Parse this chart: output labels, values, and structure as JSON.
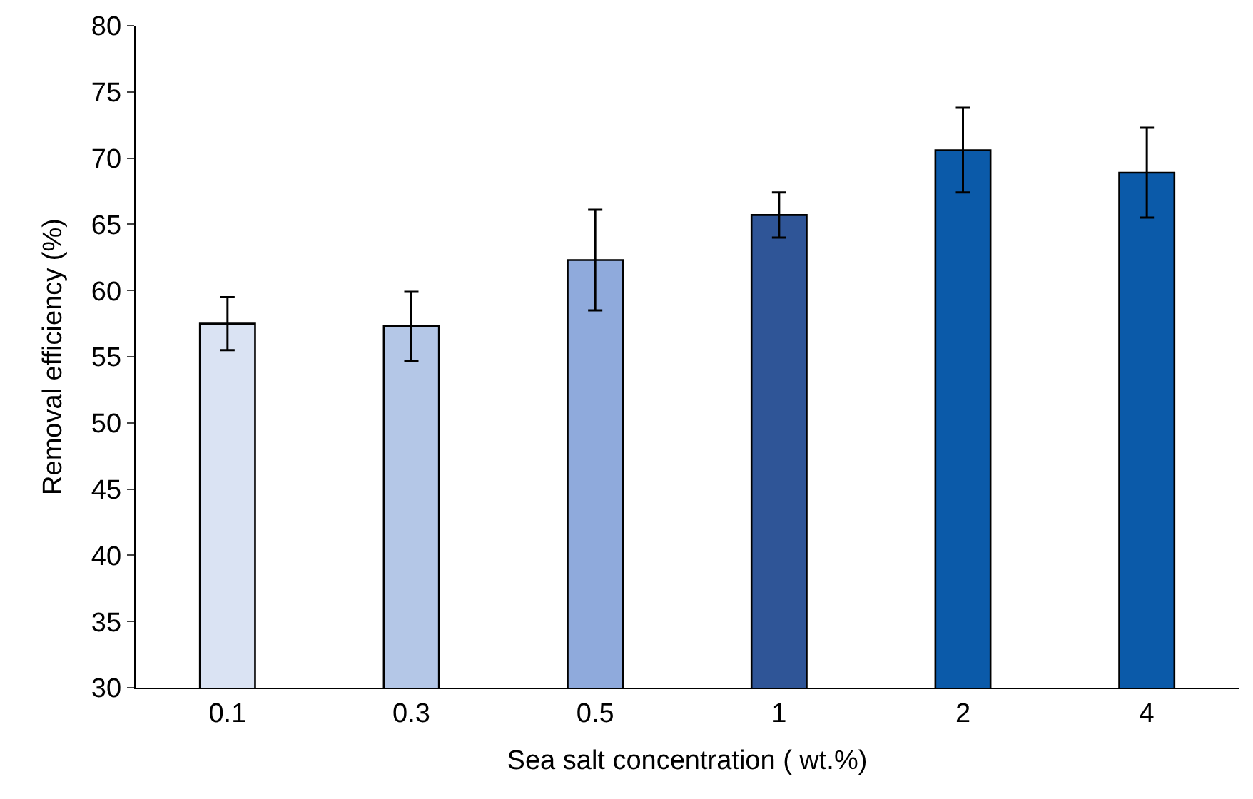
{
  "chart_data": {
    "type": "bar",
    "xlabel": "Sea salt concentration ( wt.%)",
    "ylabel": "Removal efficiency (%)",
    "categories": [
      "0.1",
      "0.3",
      "0.5",
      "1",
      "2",
      "4"
    ],
    "values": [
      57.5,
      57.3,
      62.3,
      65.7,
      70.6,
      68.9
    ],
    "errors": [
      2.0,
      2.6,
      3.8,
      1.7,
      3.2,
      3.4
    ],
    "colors": [
      "#dae3f3",
      "#b4c7e7",
      "#8faadc",
      "#2f5597",
      "#0b5aa9",
      "#0b5aa9"
    ],
    "ylim": [
      30,
      80
    ],
    "yticks": [
      30,
      35,
      40,
      45,
      50,
      55,
      60,
      65,
      70,
      75,
      80
    ]
  }
}
